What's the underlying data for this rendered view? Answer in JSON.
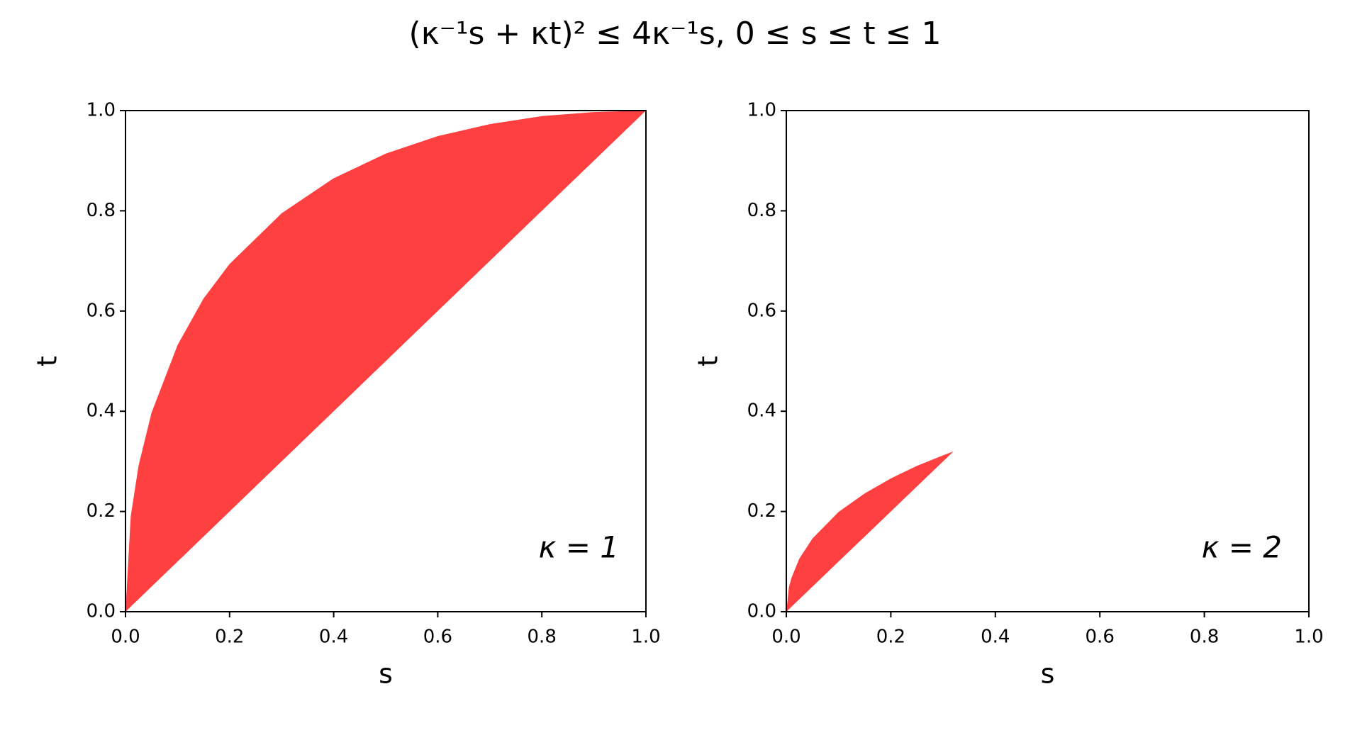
{
  "title": "(κ⁻¹s + κt)² ≤ 4κ⁻¹s,  0 ≤ s ≤ t ≤ 1",
  "chart_data": [
    {
      "type": "area",
      "annotation": "κ = 1",
      "x_label": "s",
      "y_label": "t",
      "color": "#ff4040",
      "x": [
        0,
        0.01,
        0.025,
        0.05,
        0.1,
        0.15,
        0.2,
        0.3,
        0.4,
        0.5,
        0.6,
        0.7,
        0.8,
        0.9,
        1
      ],
      "y_upper": [
        0,
        0.19,
        0.291,
        0.397,
        0.532,
        0.625,
        0.694,
        0.795,
        0.865,
        0.914,
        0.949,
        0.973,
        0.989,
        0.997,
        1
      ],
      "y_lower": [
        0,
        0.01,
        0.025,
        0.05,
        0.1,
        0.15,
        0.2,
        0.3,
        0.4,
        0.5,
        0.6,
        0.7,
        0.8,
        0.9,
        1
      ],
      "xlim": [
        0,
        1
      ],
      "ylim": [
        0,
        1
      ],
      "xticks": [
        {
          "value": 0,
          "label": "0.0"
        },
        0.2,
        0.4,
        0.6,
        0.8,
        {
          "value": 1,
          "label": "1.0"
        }
      ],
      "yticks": [
        {
          "value": 0,
          "label": "0.0"
        },
        0.2,
        0.4,
        0.6,
        0.8,
        {
          "value": 1,
          "label": "1.0"
        }
      ]
    },
    {
      "type": "area",
      "annotation": "κ = 2",
      "x_label": "s",
      "y_label": "t",
      "color": "#ff4040",
      "x": [
        0,
        0.005,
        0.01,
        0.025,
        0.05,
        0.1,
        0.15,
        0.2,
        0.25,
        0.3,
        0.32
      ],
      "y_upper": [
        0,
        0.049,
        0.068,
        0.106,
        0.146,
        0.199,
        0.236,
        0.266,
        0.291,
        0.312,
        0.32
      ],
      "y_lower": [
        0,
        0.005,
        0.01,
        0.025,
        0.05,
        0.1,
        0.15,
        0.2,
        0.25,
        0.3,
        0.32
      ],
      "xlim": [
        0,
        1
      ],
      "ylim": [
        0,
        1
      ],
      "xticks": [
        {
          "value": 0,
          "label": "0.0"
        },
        0.2,
        0.4,
        0.6,
        0.8,
        {
          "value": 1,
          "label": "1.0"
        }
      ],
      "yticks": [
        {
          "value": 0,
          "label": "0.0"
        },
        0.2,
        0.4,
        0.6,
        0.8,
        {
          "value": 1,
          "label": "1.0"
        }
      ]
    }
  ]
}
